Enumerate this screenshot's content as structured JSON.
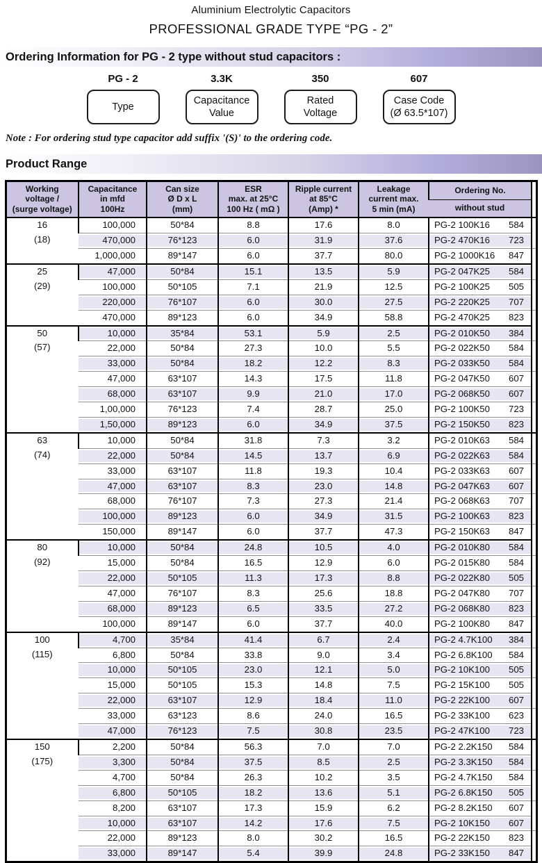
{
  "page": {
    "title_line1": "Aluminium Electrolytic Capacitors",
    "title_line2": "PROFESSIONAL GRADE  TYPE  “PG - 2”"
  },
  "colors": {
    "section_bar_gradient_start": "#ffffff",
    "section_bar_gradient_end": "#9b94be",
    "table_header_bg": "#cbc5e2",
    "row_stripe_bg": "#e8e5f2",
    "border": "#000000"
  },
  "ordering_info": {
    "section_title": "Ordering Information for PG - 2 type without stud capacitors :",
    "code_parts": [
      {
        "code": "PG - 2",
        "lines": [
          "Type"
        ]
      },
      {
        "code": "3.3K",
        "lines": [
          "Capacitance",
          "Value"
        ]
      },
      {
        "code": "350",
        "lines": [
          "Rated",
          "Voltage"
        ]
      },
      {
        "code": "607",
        "lines": [
          "Case Code",
          "(Ø 63.5*107)"
        ]
      }
    ],
    "note": "Note : For ordering stud type capacitor add suffix '(S)' to the ordering code."
  },
  "product_range": {
    "section_title": "Product Range",
    "table": {
      "headers": {
        "working_voltage": {
          "lines": [
            "Working",
            "voltage /",
            "(surge voltage)"
          ]
        },
        "capacitance": {
          "lines": [
            "Capacitance",
            "in mfd",
            "100Hz"
          ]
        },
        "can_size": {
          "lines": [
            "Can size",
            "Ø D x L",
            "(mm)"
          ]
        },
        "esr": {
          "lines": [
            "ESR",
            "max. at 25°C",
            "100 Hz ( mΩ )"
          ]
        },
        "ripple": {
          "lines": [
            "Ripple current",
            "at 85°C",
            "(Amp) *"
          ]
        },
        "leakage": {
          "lines": [
            "Leakage",
            "current max.",
            "5 min (mA)"
          ]
        },
        "ordering": {
          "top": "Ordering No.",
          "bottom": "without stud"
        }
      },
      "groups": [
        {
          "voltage": "16",
          "surge": "(18)",
          "rows": [
            [
              "100,000",
              "50*84",
              "8.8",
              "17.6",
              "8.0",
              "PG-2 100K16",
              "584"
            ],
            [
              "470,000",
              "76*123",
              "6.0",
              "31.9",
              "37.6",
              "PG-2 470K16",
              "723"
            ],
            [
              "1,000,000",
              "89*147",
              "6.0",
              "37.7",
              "80.0",
              "PG-2 1000K16",
              "847"
            ]
          ]
        },
        {
          "voltage": "25",
          "surge": "(29)",
          "rows": [
            [
              "47,000",
              "50*84",
              "15.1",
              "13.5",
              "5.9",
              "PG-2 047K25",
              "584"
            ],
            [
              "100,000",
              "50*105",
              "7.1",
              "21.9",
              "12.5",
              "PG-2 100K25",
              "505"
            ],
            [
              "220,000",
              "76*107",
              "6.0",
              "30.0",
              "27.5",
              "PG-2 220K25",
              "707"
            ],
            [
              "470,000",
              "89*123",
              "6.0",
              "34.9",
              "58.8",
              "PG-2 470K25",
              "823"
            ]
          ]
        },
        {
          "voltage": "50",
          "surge": "(57)",
          "rows": [
            [
              "10,000",
              "35*84",
              "53.1",
              "5.9",
              "2.5",
              "PG-2 010K50",
              "384"
            ],
            [
              "22,000",
              "50*84",
              "27.3",
              "10.0",
              "5.5",
              "PG-2 022K50",
              "584"
            ],
            [
              "33,000",
              "50*84",
              "18.2",
              "12.2",
              "8.3",
              "PG-2 033K50",
              "584"
            ],
            [
              "47,000",
              "63*107",
              "14.3",
              "17.5",
              "11.8",
              "PG-2 047K50",
              "607"
            ],
            [
              "68,000",
              "63*107",
              "9.9",
              "21.0",
              "17.0",
              "PG-2 068K50",
              "607"
            ],
            [
              "1,00,000",
              "76*123",
              "7.4",
              "28.7",
              "25.0",
              "PG-2 100K50",
              "723"
            ],
            [
              "1,50,000",
              "89*123",
              "6.0",
              "34.9",
              "37.5",
              "PG-2 150K50",
              "823"
            ]
          ]
        },
        {
          "voltage": "63",
          "surge": "(74)",
          "rows": [
            [
              "10,000",
              "50*84",
              "31.8",
              "7.3",
              "3.2",
              "PG-2 010K63",
              "584"
            ],
            [
              "22,000",
              "50*84",
              "14.5",
              "13.7",
              "6.9",
              "PG-2 022K63",
              "584"
            ],
            [
              "33,000",
              "63*107",
              "11.8",
              "19.3",
              "10.4",
              "PG-2 033K63",
              "607"
            ],
            [
              "47,000",
              "63*107",
              "8.3",
              "23.0",
              "14.8",
              "PG-2 047K63",
              "607"
            ],
            [
              "68,000",
              "76*107",
              "7.3",
              "27.3",
              "21.4",
              "PG-2 068K63",
              "707"
            ],
            [
              "100,000",
              "89*123",
              "6.0",
              "34.9",
              "31.5",
              "PG-2 100K63",
              "823"
            ],
            [
              "150,000",
              "89*147",
              "6.0",
              "37.7",
              "47.3",
              "PG-2 150K63",
              "847"
            ]
          ]
        },
        {
          "voltage": "80",
          "surge": "(92)",
          "rows": [
            [
              "10,000",
              "50*84",
              "24.8",
              "10.5",
              "4.0",
              "PG-2 010K80",
              "584"
            ],
            [
              "15,000",
              "50*84",
              "16.5",
              "12.9",
              "6.0",
              "PG-2 015K80",
              "584"
            ],
            [
              "22,000",
              "50*105",
              "11.3",
              "17.3",
              "8.8",
              "PG-2 022K80",
              "505"
            ],
            [
              "47,000",
              "76*107",
              "8.3",
              "25.6",
              "18.8",
              "PG-2 047K80",
              "707"
            ],
            [
              "68,000",
              "89*123",
              "6.5",
              "33.5",
              "27.2",
              "PG-2 068K80",
              "823"
            ],
            [
              "100,000",
              "89*147",
              "6.0",
              "37.7",
              "40.0",
              "PG-2 100K80",
              "847"
            ]
          ]
        },
        {
          "voltage": "100",
          "surge": "(115)",
          "rows": [
            [
              "4,700",
              "35*84",
              "41.4",
              "6.7",
              "2.4",
              "PG-2 4.7K100",
              "384"
            ],
            [
              "6,800",
              "50*84",
              "33.8",
              "9.0",
              "3.4",
              "PG-2 6.8K100",
              "584"
            ],
            [
              "10,000",
              "50*105",
              "23.0",
              "12.1",
              "5.0",
              "PG-2 10K100",
              "505"
            ],
            [
              "15,000",
              "50*105",
              "15.3",
              "14.8",
              "7.5",
              "PG-2 15K100",
              "505"
            ],
            [
              "22,000",
              "63*107",
              "12.9",
              "18.4",
              "11.0",
              "PG-2 22K100",
              "607"
            ],
            [
              "33,000",
              "63*123",
              "8.6",
              "24.0",
              "16.5",
              "PG-2 33K100",
              "623"
            ],
            [
              "47,000",
              "76*123",
              "7.5",
              "30.8",
              "23.5",
              "PG-2 47K100",
              "723"
            ]
          ]
        },
        {
          "voltage": "150",
          "surge": "(175)",
          "rows": [
            [
              "2,200",
              "50*84",
              "56.3",
              "7.0",
              "7.0",
              "PG-2 2.2K150",
              "584"
            ],
            [
              "3,300",
              "50*84",
              "37.5",
              "8.5",
              "2.5",
              "PG-2 3.3K150",
              "584"
            ],
            [
              "4,700",
              "50*84",
              "26.3",
              "10.2",
              "3.5",
              "PG-2 4.7K150",
              "584"
            ],
            [
              "6,800",
              "50*105",
              "18.2",
              "13.6",
              "5.1",
              "PG-2 6.8K150",
              "505"
            ],
            [
              "8,200",
              "63*107",
              "17.3",
              "15.9",
              "6.2",
              "PG-2 8.2K150",
              "607"
            ],
            [
              "10,000",
              "63*107",
              "14.2",
              "17.6",
              "7.5",
              "PG-2 10K150",
              "607"
            ],
            [
              "22,000",
              "89*123",
              "8.0",
              "30.2",
              "16.5",
              "PG-2 22K150",
              "823"
            ],
            [
              "33,000",
              "89*147",
              "5.4",
              "39.9",
              "24.8",
              "PG-2 33K150",
              "847"
            ]
          ]
        }
      ]
    }
  }
}
